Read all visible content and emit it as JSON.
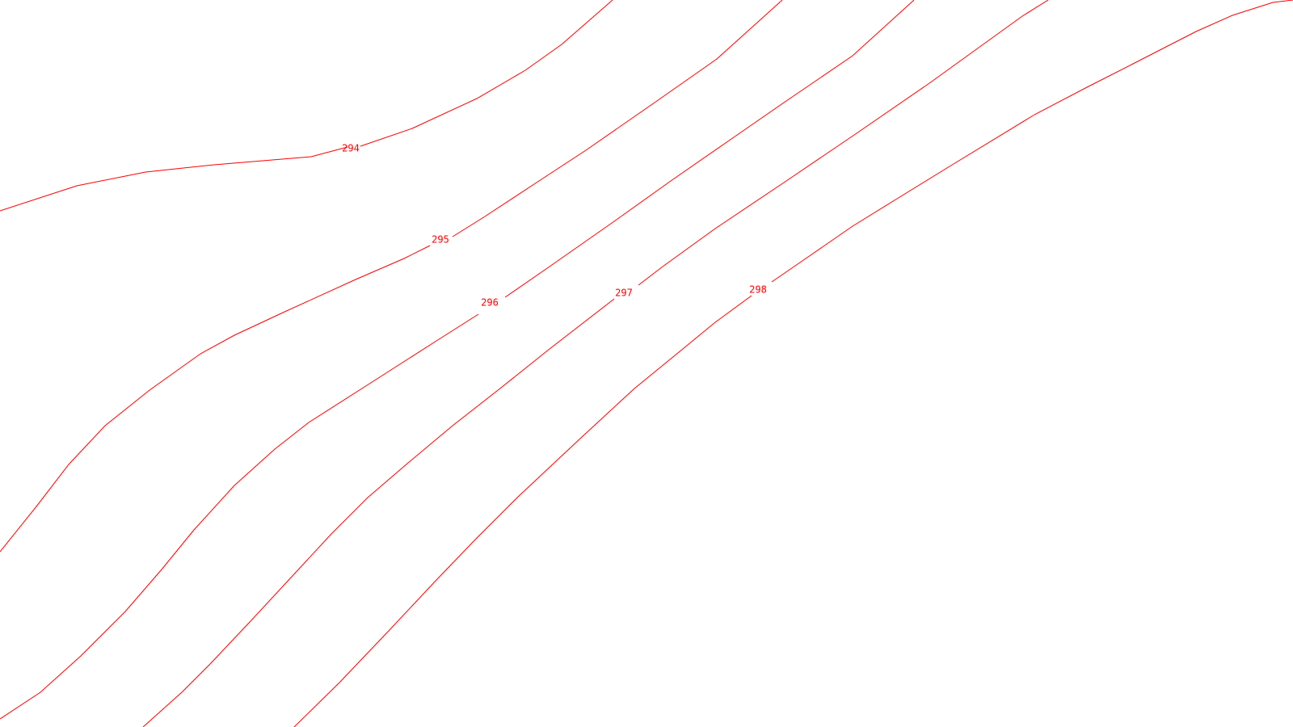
{
  "map": {
    "line_color": "#ff0000",
    "background_color": "#ffffff",
    "contours": [
      {
        "id": "294",
        "label": "294"
      },
      {
        "id": "295",
        "label": "295"
      },
      {
        "id": "296",
        "label": "296"
      },
      {
        "id": "297",
        "label": "297"
      },
      {
        "id": "298",
        "label": "298"
      }
    ]
  }
}
